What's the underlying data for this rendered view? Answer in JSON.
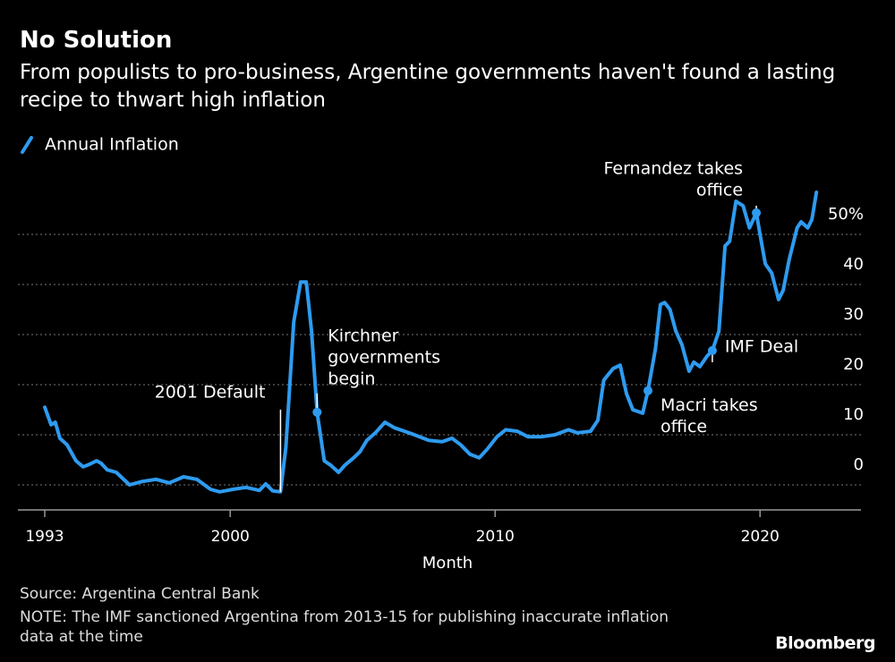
{
  "chart_data": {
    "type": "line",
    "title": "No Solution",
    "subtitle": "From populists to pro-business, Argentine governments haven't found a lasting recipe to thwart high inflation",
    "x_label": "Month",
    "source": "Source: Argentina Central Bank",
    "note": "NOTE: The IMF sanctioned Argentina from 2013-15 for publishing inaccurate inflation data at the time",
    "brand": "Bloomberg",
    "legend": "top-left",
    "grid": true,
    "xlim": [
      1992,
      2024
    ],
    "xticks": [
      1993,
      2000,
      2010,
      2020
    ],
    "ylim": [
      -5,
      60
    ],
    "yticks": [
      0,
      10,
      20,
      30,
      40,
      {
        "value": 50,
        "label": "50%"
      }
    ],
    "x": [
      1993.0,
      1993.24,
      1993.4,
      1993.57,
      1993.84,
      1994.18,
      1994.45,
      1994.69,
      1994.96,
      1995.13,
      1995.36,
      1995.7,
      1996.2,
      1996.7,
      1997.2,
      1997.7,
      1998.24,
      1998.74,
      1999.26,
      1999.6,
      2000.1,
      2000.6,
      2001.1,
      2001.34,
      2001.6,
      2001.9,
      2002.1,
      2002.4,
      2002.66,
      2002.87,
      2003.07,
      2003.28,
      2003.55,
      2003.8,
      2004.09,
      2004.32,
      2004.66,
      2004.9,
      2005.16,
      2005.5,
      2005.84,
      2006.2,
      2006.85,
      2007.5,
      2008.0,
      2008.37,
      2008.7,
      2009.05,
      2009.4,
      2009.7,
      2010.07,
      2010.4,
      2010.84,
      2011.24,
      2011.75,
      2012.26,
      2012.77,
      2013.1,
      2013.6,
      2013.88,
      2014.1,
      2014.45,
      2014.72,
      2014.96,
      2015.2,
      2015.57,
      2015.77,
      2016.05,
      2016.24,
      2016.4,
      2016.6,
      2016.82,
      2017.05,
      2017.32,
      2017.5,
      2017.73,
      2018.0,
      2018.2,
      2018.45,
      2018.68,
      2018.85,
      2019.09,
      2019.36,
      2019.6,
      2019.86,
      2020.0,
      2020.2,
      2020.44,
      2020.7,
      2020.87,
      2021.1,
      2021.4,
      2021.55,
      2021.8,
      2021.96,
      2022.13
    ],
    "series": [
      {
        "name": "Annual Inflation",
        "color": "#2e9bf0",
        "values": [
          15.5,
          12,
          12.5,
          9.3,
          8,
          4.8,
          3.6,
          4.1,
          4.8,
          4.3,
          3,
          2.5,
          0,
          0.7,
          1.1,
          0.4,
          1.6,
          1.1,
          -0.9,
          -1.4,
          -0.9,
          -0.5,
          -1.1,
          0.2,
          -1.2,
          -1.4,
          7.5,
          32.5,
          40.5,
          40.5,
          30.7,
          14.5,
          4.8,
          3.9,
          2.5,
          3.9,
          5.4,
          6.6,
          8.9,
          10.5,
          12.5,
          11.4,
          10.2,
          8.9,
          8.6,
          9.3,
          8,
          6.1,
          5.4,
          7.1,
          9.6,
          11,
          10.7,
          9.6,
          9.6,
          10,
          11,
          10.4,
          10.7,
          12.9,
          20.9,
          23.2,
          23.9,
          18.2,
          15,
          14.3,
          18.8,
          27.1,
          36,
          36.4,
          35,
          30.7,
          28,
          22.7,
          24.5,
          23.6,
          25.7,
          26.8,
          30.7,
          47.7,
          48.6,
          56.6,
          55.7,
          51.3,
          54.3,
          50,
          44.1,
          42.3,
          37,
          38.8,
          45,
          51.3,
          52.5,
          51.3,
          53,
          58.4
        ]
      }
    ],
    "annotations": [
      {
        "lines": [
          "2001 Default"
        ],
        "x": 2001.9,
        "y": -1.4
      },
      {
        "lines": [
          "Kirchner",
          "governments",
          "begin"
        ],
        "x": 2003.28,
        "y": 14.5
      },
      {
        "lines": [
          "Macri takes",
          "office"
        ],
        "x": 2015.77,
        "y": 18.8
      },
      {
        "lines": [
          "IMF Deal"
        ],
        "x": 2018.2,
        "y": 26.8
      },
      {
        "lines": [
          "Fernandez takes",
          "office"
        ],
        "x": 2019.86,
        "y": 54.3
      }
    ]
  }
}
